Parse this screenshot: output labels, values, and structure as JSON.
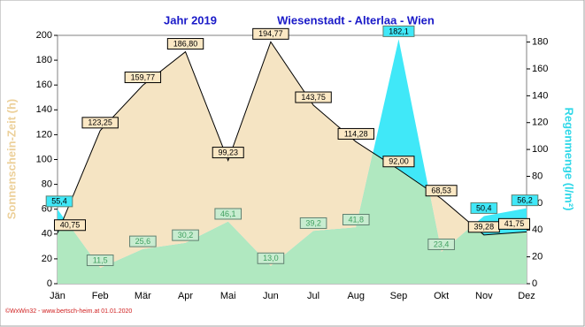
{
  "chart_data": {
    "type": "area",
    "title": "Jahr  2019",
    "subtitle": "Wiesenstadt - Alterlaa - Wien",
    "footer": "©WxWin32 - www.bertsch-heim.at 01.01.2020",
    "y_label": "Sonnenschein-Zeit  (h)",
    "y2_label": "Regenmenge  (l/m²)",
    "categories": [
      "Jän",
      "Feb",
      "Mär",
      "Apr",
      "Mai",
      "Jun",
      "Jul",
      "Aug",
      "Sep",
      "Okt",
      "Nov",
      "Dez"
    ],
    "series": [
      {
        "name": "Sonnenschein-Zeit",
        "color": "#f5e4c3",
        "axis": "y",
        "values": [
          40.75,
          123.25,
          159.77,
          186.8,
          99.23,
          194.77,
          143.75,
          114.28,
          92.0,
          68.53,
          39.28,
          41.75
        ],
        "value_labels": [
          "40,75",
          "123,25",
          "159,77",
          "186,80",
          "99,23",
          "194,77",
          "143,75",
          "114,28",
          "92,00",
          "68,53",
          "39,28",
          "41,75"
        ]
      },
      {
        "name": "Regenmenge",
        "color": "#40e8f8",
        "axis": "y2",
        "values": [
          55.4,
          11.5,
          25.6,
          30.2,
          46.1,
          13.0,
          39.2,
          41.8,
          182.1,
          23.4,
          50.4,
          56.2
        ],
        "value_labels": [
          "55,4",
          "11,5",
          "25,6",
          "30,2",
          "46,1",
          "13,0",
          "39,2",
          "41,8",
          "182,1",
          "23,4",
          "50,4",
          "56,2"
        ]
      }
    ],
    "overlap_color": "#b0e8c0",
    "ylim": [
      0,
      200
    ],
    "yticks": [
      0,
      20,
      40,
      60,
      80,
      100,
      120,
      140,
      160,
      180,
      200
    ],
    "y2lim": [
      0,
      185
    ],
    "y2ticks": [
      0,
      20,
      40,
      60,
      80,
      100,
      120,
      140,
      160,
      180
    ]
  }
}
